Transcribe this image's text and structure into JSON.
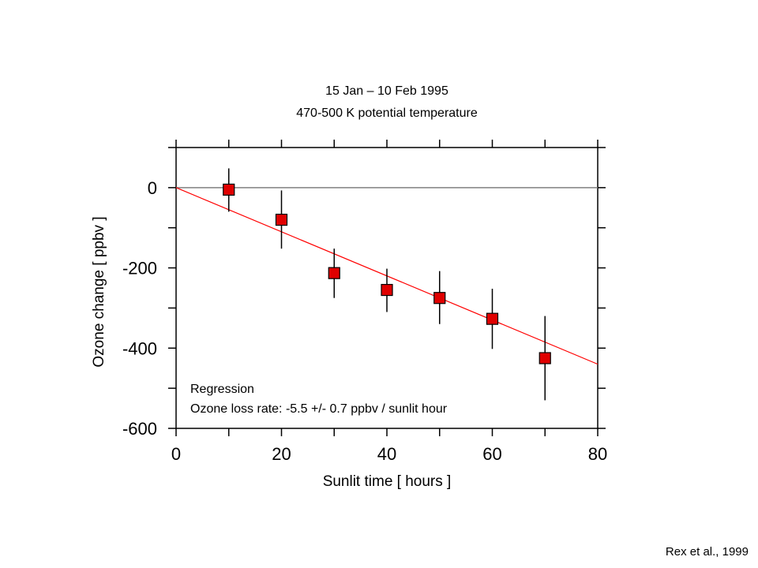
{
  "chart_data": {
    "type": "scatter",
    "title": "15 Jan – 10 Feb 1995",
    "subtitle": "470-500 K potential temperature",
    "xlabel": "Sunlit time [ hours ]",
    "ylabel": "Ozone change [ ppbv ]",
    "xlim": [
      0,
      80
    ],
    "ylim": [
      -600,
      100
    ],
    "xticks": [
      0,
      20,
      40,
      60,
      80
    ],
    "yticks": [
      0,
      -200,
      -400,
      -600
    ],
    "x": [
      10,
      20,
      30,
      40,
      50,
      60,
      70
    ],
    "y": [
      -5,
      -80,
      -213,
      -255,
      -275,
      -327,
      -425
    ],
    "yerr_low": [
      -60,
      -152,
      -275,
      -310,
      -340,
      -402,
      -530
    ],
    "yerr_high": [
      48,
      -7,
      -152,
      -202,
      -208,
      -252,
      -320
    ],
    "regression": {
      "slope": -5.5,
      "intercept": 0,
      "color": "#ff0000"
    },
    "zero_line": 0,
    "marker_color": "#e00000",
    "annotation": [
      "Regression",
      "Ozone loss rate: -5.5 +/- 0.7 ppbv / sunlit hour"
    ],
    "grid": false
  },
  "credit": "Rex et al., 1999"
}
